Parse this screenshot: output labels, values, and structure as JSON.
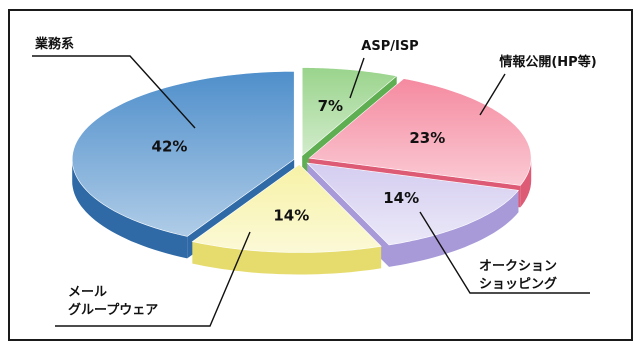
{
  "chart_data": {
    "type": "pie",
    "style": "3d-exploded",
    "start": "top, clockwise",
    "slices": [
      {
        "label": "ASP/ISP",
        "value": 7,
        "value_label": "7%",
        "color": "#9ad48c",
        "side": "#5fae52"
      },
      {
        "label": "情報公開(HP等)",
        "value": 23,
        "value_label": "23%",
        "color": "#f58aa0",
        "side": "#de5b76"
      },
      {
        "label": "オークションショッピング",
        "label_lines": [
          "オークション",
          "ショッピング"
        ],
        "value": 14,
        "value_label": "14%",
        "color": "#d4cdf0",
        "side": "#a89ad8"
      },
      {
        "label": "メールグループウェア",
        "label_lines": [
          "メール",
          "グループウェア"
        ],
        "value": 14,
        "value_label": "14%",
        "color": "#f7f2a6",
        "side": "#e6dc6e"
      },
      {
        "label": "業務系",
        "value": 42,
        "value_label": "42%",
        "color": "#4f8fcb",
        "side": "#2f6aa6"
      }
    ]
  }
}
